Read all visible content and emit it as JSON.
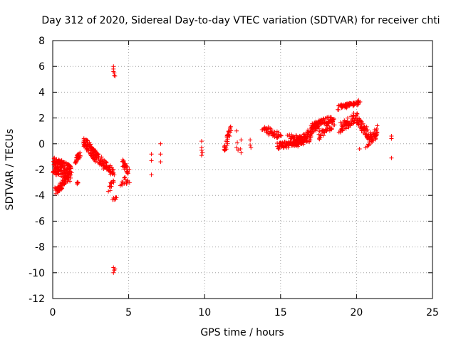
{
  "chart_data": {
    "type": "scatter",
    "title": "Day 312 of 2020, Sidereal Day-to-day VTEC variation (SDTVAR) for receiver chti",
    "xlabel": "GPS time / hours",
    "ylabel": "SDTVAR / TECUs",
    "xlim": [
      0,
      25
    ],
    "ylim": [
      -12,
      8
    ],
    "xticks": [
      0,
      5,
      10,
      15,
      20,
      25
    ],
    "yticks": [
      -12,
      -10,
      -8,
      -6,
      -4,
      -2,
      0,
      2,
      4,
      6,
      8
    ],
    "xtick_labels": [
      "0",
      "5",
      "10",
      "15",
      "20",
      "25"
    ],
    "ytick_labels": [
      "-12",
      "-10",
      "-8",
      "-6",
      "-4",
      "-2",
      "0",
      "2",
      "4",
      "6",
      "8"
    ],
    "grid": true,
    "legend": "none",
    "marker": "+",
    "color": "#ff0000",
    "series": [
      {
        "name": "SDTVAR",
        "segments": [
          {
            "x": [
              0.0,
              1.2
            ],
            "y": [
              -1.6,
              -2.3
            ],
            "spread": 1.3,
            "n": 160
          },
          {
            "x": [
              0.2,
              1.0
            ],
            "y": [
              -3.7,
              -2.6
            ],
            "spread": 0.6,
            "n": 60
          },
          {
            "x": [
              1.5,
              1.8
            ],
            "y": [
              -1.4,
              -0.8
            ],
            "spread": 0.4,
            "n": 25
          },
          {
            "x": [
              1.6,
              1.7
            ],
            "y": [
              -3.1,
              -3.0
            ],
            "spread": 0.2,
            "n": 6
          },
          {
            "x": [
              2.0,
              2.8
            ],
            "y": [
              0.3,
              -1.0
            ],
            "spread": 0.9,
            "n": 70
          },
          {
            "x": [
              2.5,
              3.4
            ],
            "y": [
              -0.5,
              -1.6
            ],
            "spread": 0.7,
            "n": 60
          },
          {
            "x": [
              3.4,
              4.0
            ],
            "y": [
              -1.6,
              -2.2
            ],
            "spread": 0.6,
            "n": 40
          },
          {
            "x": [
              3.7,
              4.0
            ],
            "y": [
              -3.6,
              -2.6
            ],
            "spread": 0.6,
            "n": 14
          },
          {
            "x": [
              4.0,
              4.2
            ],
            "y": [
              -4.3,
              -4.2
            ],
            "spread": 0.15,
            "n": 8
          },
          {
            "x": [
              4.6,
              5.0
            ],
            "y": [
              -1.4,
              -2.2
            ],
            "spread": 0.6,
            "n": 30
          },
          {
            "x": [
              4.5,
              5.0
            ],
            "y": [
              -3.0,
              -2.8
            ],
            "spread": 0.6,
            "n": 15
          },
          {
            "x": [
              11.3,
              11.7
            ],
            "y": [
              -0.6,
              1.2
            ],
            "spread": 0.7,
            "n": 30
          },
          {
            "x": [
              13.8,
              15.0
            ],
            "y": [
              1.2,
              0.6
            ],
            "spread": 0.6,
            "n": 50
          },
          {
            "x": [
              14.8,
              16.5
            ],
            "y": [
              -0.2,
              0.2
            ],
            "spread": 0.5,
            "n": 90
          },
          {
            "x": [
              15.5,
              17.0
            ],
            "y": [
              0.6,
              0.3
            ],
            "spread": 0.4,
            "n": 50
          },
          {
            "x": [
              16.0,
              17.5
            ],
            "y": [
              0.0,
              1.4
            ],
            "spread": 0.6,
            "n": 80
          },
          {
            "x": [
              17.0,
              18.5
            ],
            "y": [
              1.3,
              2.0
            ],
            "spread": 0.5,
            "n": 70
          },
          {
            "x": [
              17.5,
              18.5
            ],
            "y": [
              0.6,
              1.6
            ],
            "spread": 0.6,
            "n": 40
          },
          {
            "x": [
              18.8,
              20.2
            ],
            "y": [
              2.8,
              3.2
            ],
            "spread": 0.4,
            "n": 60
          },
          {
            "x": [
              18.9,
              20.0
            ],
            "y": [
              1.2,
              2.1
            ],
            "spread": 0.8,
            "n": 60
          },
          {
            "x": [
              20.0,
              20.7
            ],
            "y": [
              2.0,
              0.8
            ],
            "spread": 0.8,
            "n": 50
          },
          {
            "x": [
              20.7,
              21.4
            ],
            "y": [
              0.2,
              1.0
            ],
            "spread": 0.9,
            "n": 50
          }
        ],
        "points": [
          [
            4.0,
            6.0
          ],
          [
            4.0,
            5.8
          ],
          [
            4.05,
            5.5
          ],
          [
            4.05,
            5.3
          ],
          [
            4.1,
            5.25
          ],
          [
            4.0,
            5.6
          ],
          [
            4.0,
            -9.6
          ],
          [
            4.05,
            -9.8
          ],
          [
            4.0,
            -10.0
          ],
          [
            4.1,
            -9.7
          ],
          [
            6.5,
            -0.8
          ],
          [
            6.5,
            -1.3
          ],
          [
            6.5,
            -2.4
          ],
          [
            7.1,
            0.0
          ],
          [
            7.1,
            -0.8
          ],
          [
            7.1,
            -1.4
          ],
          [
            9.8,
            0.2
          ],
          [
            9.8,
            -0.3
          ],
          [
            9.8,
            -0.5
          ],
          [
            9.85,
            -0.7
          ],
          [
            9.8,
            -0.9
          ],
          [
            12.1,
            1.0
          ],
          [
            12.15,
            0.1
          ],
          [
            12.1,
            -0.3
          ],
          [
            12.2,
            -0.5
          ],
          [
            12.4,
            0.3
          ],
          [
            12.35,
            -0.4
          ],
          [
            12.4,
            -0.7
          ],
          [
            13.0,
            0.3
          ],
          [
            13.0,
            -0.1
          ],
          [
            13.05,
            -0.3
          ],
          [
            20.2,
            -0.4
          ],
          [
            20.6,
            -0.3
          ],
          [
            20.7,
            -0.2
          ],
          [
            22.3,
            0.6
          ],
          [
            22.3,
            0.4
          ],
          [
            22.3,
            -1.1
          ]
        ]
      }
    ]
  }
}
